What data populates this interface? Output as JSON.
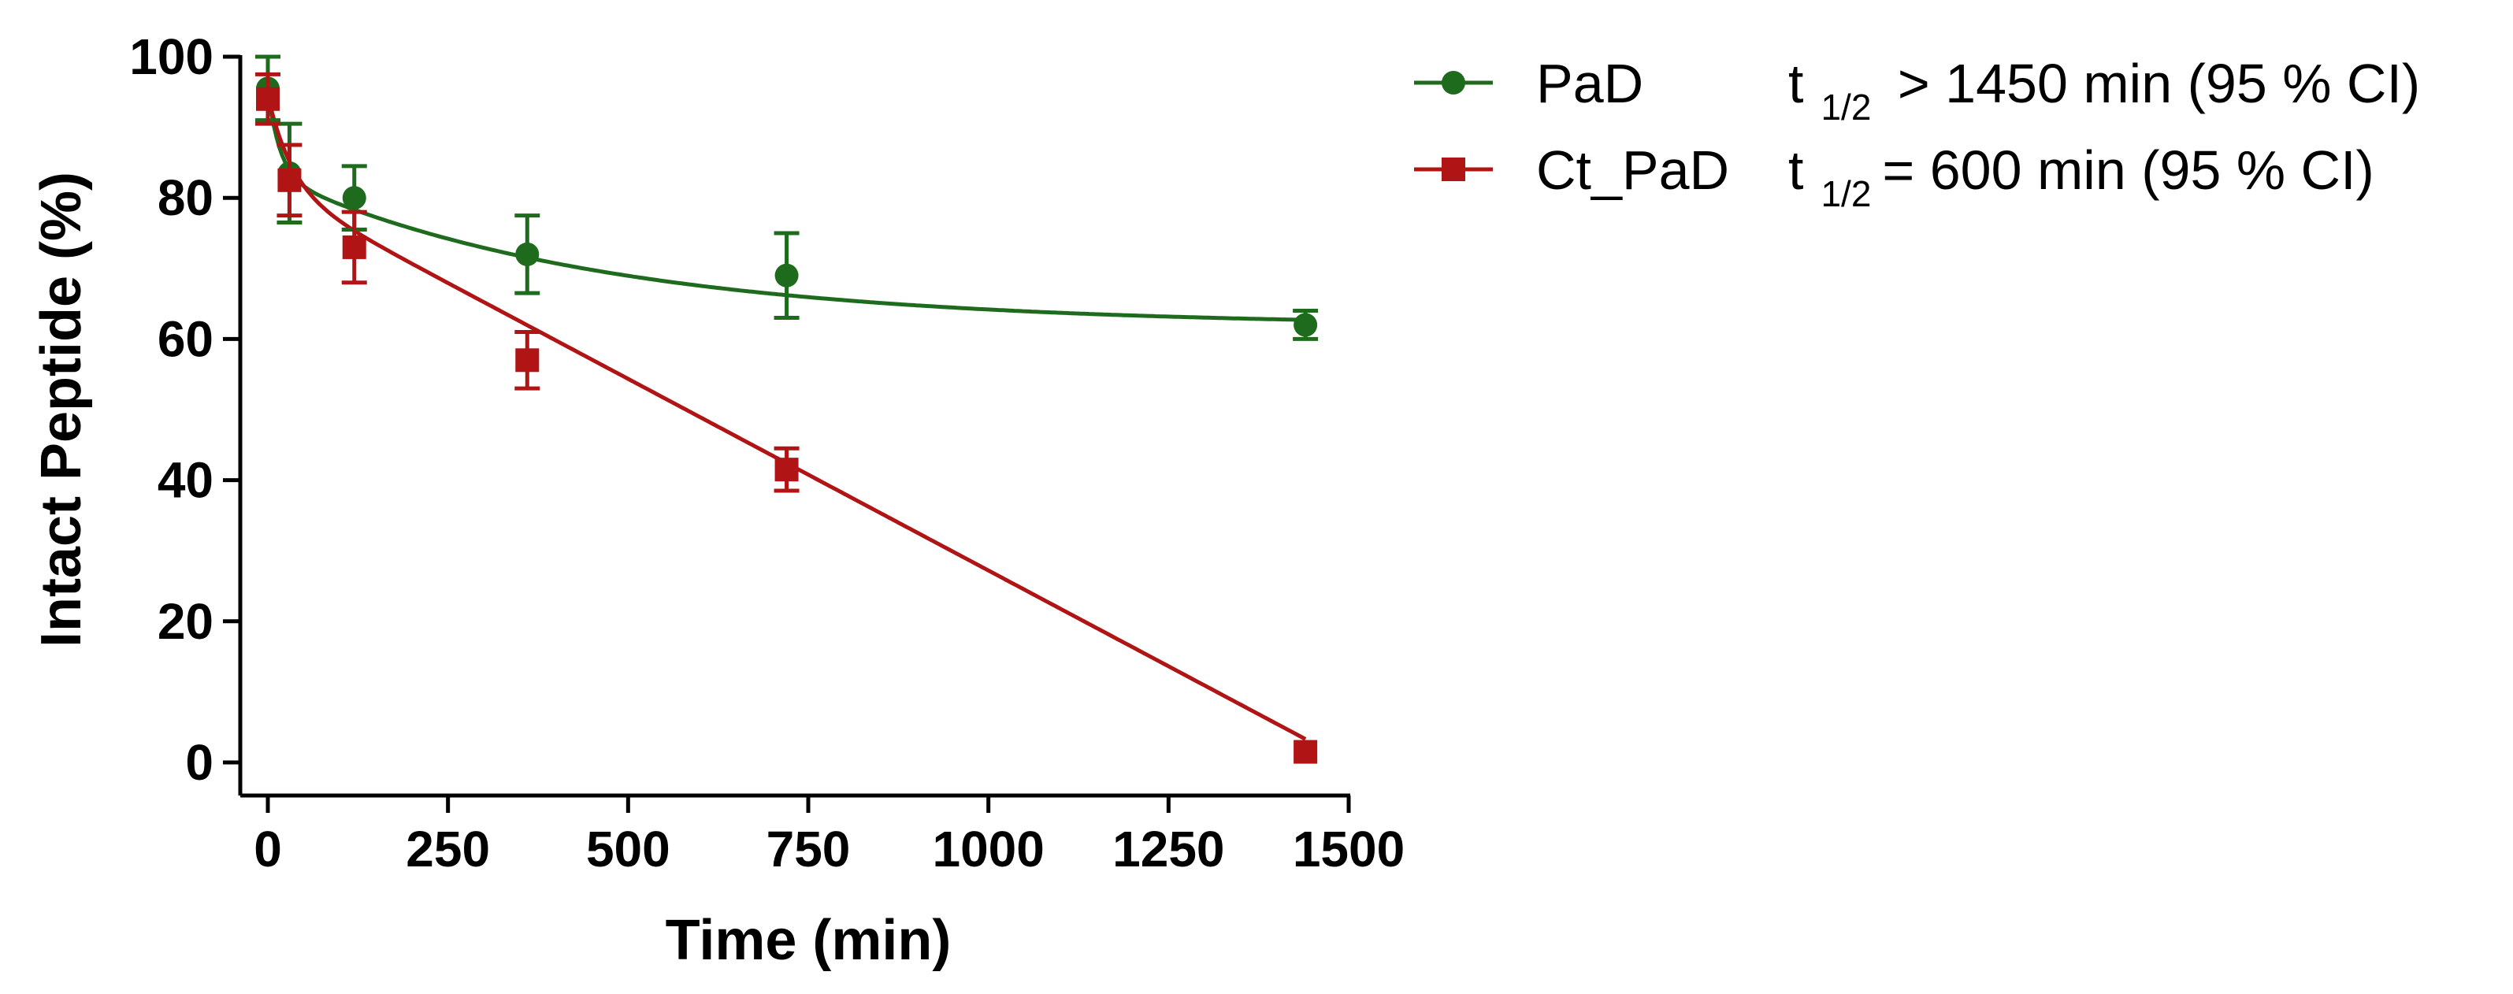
{
  "chart_data": {
    "type": "line",
    "title": "",
    "xlabel": "Time (min)",
    "ylabel": "Intact Peptide (%)",
    "xlim": [
      -30,
      1500
    ],
    "ylim": [
      -5,
      100
    ],
    "xticks": [
      0,
      250,
      500,
      750,
      1000,
      1250,
      1500
    ],
    "yticks": [
      0,
      20,
      40,
      60,
      80,
      100
    ],
    "series": [
      {
        "name": "PaD",
        "color": "#1e6b1e",
        "marker": "circle",
        "x": [
          0,
          30,
          120,
          360,
          720,
          1440
        ],
        "y": [
          95.5,
          83.5,
          80,
          72,
          69,
          62
        ],
        "err": [
          4.5,
          7,
          4.5,
          5.5,
          6,
          2
        ],
        "fit": {
          "a": 21,
          "k": 0.058,
          "c": 62,
          "b": 0.0016,
          "d": 57
        },
        "half_life_prefix": "t",
        "half_life_sub": "1/2",
        "half_life_text": " > 1450 min (95 % CI)"
      },
      {
        "name": "Ct_PaD",
        "color": "#b01414",
        "marker": "square",
        "x": [
          0,
          30,
          120,
          360,
          720,
          1440
        ],
        "y": [
          94,
          82.5,
          73,
          57,
          41.5,
          1.5
        ],
        "err": [
          3.5,
          5,
          5,
          4,
          3,
          0
        ],
        "fit": {
          "a": 13,
          "k": 0.03,
          "c": 0,
          "b": 0.0,
          "d": 0,
          "line_intercept": 79.5,
          "line_slope": -0.0543
        },
        "half_life_prefix": "t",
        "half_life_sub": "1/2",
        "half_life_text": "= 600 min (95 % CI)"
      }
    ],
    "legend_position": "top-right"
  }
}
